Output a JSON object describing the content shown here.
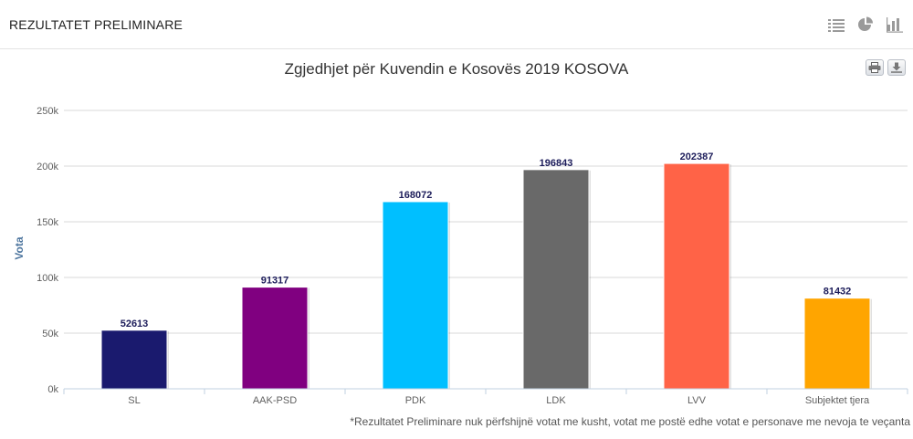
{
  "panel": {
    "title": "REZULTATET PRELIMINARE",
    "view_icons": [
      "list-view-icon",
      "pie-chart-icon",
      "bar-chart-icon"
    ]
  },
  "export": {
    "icons": [
      "print-icon",
      "download-icon"
    ]
  },
  "footnote": "*Rezultatet Preliminare nuk përfshijnë votat me kusht, votat me postë edhe votat e personave me nevoja te veçanta",
  "chart_data": {
    "type": "bar",
    "title": "Zgjedhjet për Kuvendin e Kosovës 2019 KOSOVA",
    "ylabel": "Vota",
    "xlabel": "",
    "categories": [
      "SL",
      "AAK-PSD",
      "PDK",
      "LDK",
      "LVV",
      "Subjektet tjera"
    ],
    "values": [
      52613,
      91317,
      168072,
      196843,
      202387,
      81432
    ],
    "colors": [
      "#1a1a6e",
      "#800080",
      "#00bfff",
      "#696969",
      "#ff6347",
      "#ffa500"
    ],
    "ylim": [
      0,
      250000
    ],
    "yticks": [
      0,
      50000,
      100000,
      150000,
      200000,
      250000
    ],
    "ytick_labels": [
      "0k",
      "50k",
      "100k",
      "150k",
      "200k",
      "250k"
    ],
    "data_labels": true,
    "grid": true,
    "legend": "none"
  }
}
